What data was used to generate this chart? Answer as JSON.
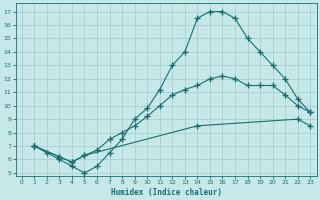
{
  "xlabel": "Humidex (Indice chaleur)",
  "background_color": "#c6e8e8",
  "grid_color": "#a8d0d0",
  "line_color": "#1a6e6e",
  "ylim": [
    4.8,
    17.6
  ],
  "xlim": [
    -0.5,
    23.5
  ],
  "yticks": [
    5,
    6,
    7,
    8,
    9,
    10,
    11,
    12,
    13,
    14,
    15,
    16,
    17
  ],
  "xticks": [
    0,
    1,
    2,
    3,
    4,
    5,
    6,
    7,
    8,
    9,
    10,
    11,
    12,
    13,
    14,
    15,
    16,
    17,
    18,
    19,
    20,
    21,
    22,
    23
  ],
  "line1_x": [
    1,
    2,
    3,
    4,
    5,
    6,
    7,
    8,
    9,
    10,
    11,
    12,
    13,
    14,
    15,
    16,
    17,
    18,
    19,
    20,
    21,
    22,
    23
  ],
  "line1_y": [
    7.0,
    6.5,
    6.0,
    5.5,
    5.0,
    5.5,
    6.5,
    7.5,
    9.0,
    9.8,
    11.2,
    13.0,
    14.0,
    16.5,
    17.0,
    17.0,
    16.5,
    15.0,
    14.0,
    13.0,
    12.0,
    10.5,
    9.5
  ],
  "line2_x": [
    1,
    3,
    4,
    5,
    6,
    7,
    8,
    9,
    10,
    11,
    12,
    13,
    14,
    15,
    16,
    17,
    18,
    19,
    20,
    21,
    22,
    23
  ],
  "line2_y": [
    7.0,
    6.2,
    5.8,
    6.3,
    6.7,
    7.5,
    8.0,
    8.5,
    9.2,
    10.0,
    10.8,
    11.2,
    11.5,
    12.0,
    12.2,
    12.0,
    11.5,
    11.5,
    11.5,
    10.8,
    10.0,
    9.5
  ],
  "line3_x": [
    1,
    3,
    4,
    5,
    14,
    22,
    23
  ],
  "line3_y": [
    7.0,
    6.2,
    5.8,
    6.3,
    8.5,
    9.0,
    8.5
  ]
}
